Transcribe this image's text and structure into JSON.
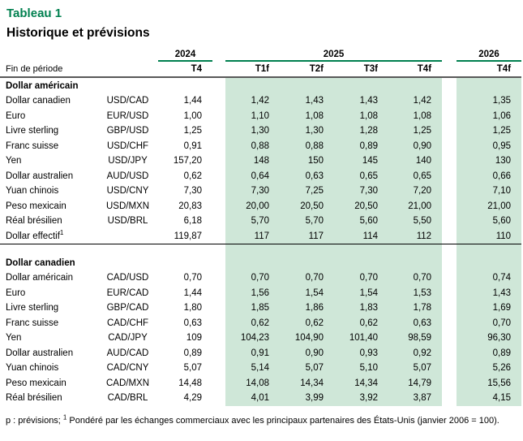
{
  "title": "Tableau 1",
  "subtitle": "Historique et prévisions",
  "colors": {
    "accent_green": "#00804F",
    "forecast_band_green": "#CFE7D8",
    "header_rule_gray": "#595959"
  },
  "header": {
    "period_label": "Fin de période",
    "year_groups": [
      {
        "label": "2024",
        "quarters": [
          "T4"
        ]
      },
      {
        "label": "2025",
        "quarters": [
          "T1f",
          "T2f",
          "T3f",
          "T4f"
        ]
      },
      {
        "label": "2026",
        "quarters": [
          "T4f"
        ]
      }
    ]
  },
  "sections": [
    {
      "title": "Dollar américain",
      "rows": [
        {
          "label": "Dollar canadien",
          "pair": "USD/CAD",
          "values": [
            "1,44",
            "1,42",
            "1,43",
            "1,43",
            "1,42",
            "1,35"
          ]
        },
        {
          "label": "Euro",
          "pair": "EUR/USD",
          "values": [
            "1,00",
            "1,10",
            "1,08",
            "1,08",
            "1,08",
            "1,06"
          ]
        },
        {
          "label": "Livre sterling",
          "pair": "GBP/USD",
          "values": [
            "1,25",
            "1,30",
            "1,30",
            "1,28",
            "1,25",
            "1,25"
          ]
        },
        {
          "label": "Franc suisse",
          "pair": "USD/CHF",
          "values": [
            "0,91",
            "0,88",
            "0,88",
            "0,89",
            "0,90",
            "0,95"
          ]
        },
        {
          "label": "Yen",
          "pair": "USD/JPY",
          "values": [
            "157,20",
            "148",
            "150",
            "145",
            "140",
            "130"
          ]
        },
        {
          "label": "Dollar australien",
          "pair": "AUD/USD",
          "values": [
            "0,62",
            "0,64",
            "0,63",
            "0,65",
            "0,65",
            "0,66"
          ]
        },
        {
          "label": "Yuan chinois",
          "pair": "USD/CNY",
          "values": [
            "7,30",
            "7,30",
            "7,25",
            "7,30",
            "7,20",
            "7,10"
          ]
        },
        {
          "label": "Peso mexicain",
          "pair": "USD/MXN",
          "values": [
            "20,83",
            "20,00",
            "20,50",
            "20,50",
            "21,00",
            "21,00"
          ]
        },
        {
          "label": "Réal brésilien",
          "pair": "USD/BRL",
          "values": [
            "6,18",
            "5,70",
            "5,70",
            "5,60",
            "5,50",
            "5,60"
          ]
        },
        {
          "label": "Dollar effectif",
          "sup": "1",
          "pair": "",
          "values": [
            "119,87",
            "117",
            "117",
            "114",
            "112",
            "110"
          ]
        }
      ]
    },
    {
      "title": "Dollar canadien",
      "rows": [
        {
          "label": "Dollar américain",
          "pair": "CAD/USD",
          "values": [
            "0,70",
            "0,70",
            "0,70",
            "0,70",
            "0,70",
            "0,74"
          ]
        },
        {
          "label": "Euro",
          "pair": "EUR/CAD",
          "values": [
            "1,44",
            "1,56",
            "1,54",
            "1,54",
            "1,53",
            "1,43"
          ]
        },
        {
          "label": "Livre sterling",
          "pair": "GBP/CAD",
          "values": [
            "1,80",
            "1,85",
            "1,86",
            "1,83",
            "1,78",
            "1,69"
          ]
        },
        {
          "label": "Franc suisse",
          "pair": "CAD/CHF",
          "values": [
            "0,63",
            "0,62",
            "0,62",
            "0,62",
            "0,63",
            "0,70"
          ]
        },
        {
          "label": "Yen",
          "pair": "CAD/JPY",
          "values": [
            "109",
            "104,23",
            "104,90",
            "101,40",
            "98,59",
            "96,30"
          ]
        },
        {
          "label": "Dollar australien",
          "pair": "AUD/CAD",
          "values": [
            "0,89",
            "0,91",
            "0,90",
            "0,93",
            "0,92",
            "0,89"
          ]
        },
        {
          "label": "Yuan chinois",
          "pair": "CAD/CNY",
          "values": [
            "5,07",
            "5,14",
            "5,07",
            "5,10",
            "5,07",
            "5,26"
          ]
        },
        {
          "label": "Peso mexicain",
          "pair": "CAD/MXN",
          "values": [
            "14,48",
            "14,08",
            "14,34",
            "14,34",
            "14,79",
            "15,56"
          ]
        },
        {
          "label": "Réal brésilien",
          "pair": "CAD/BRL",
          "values": [
            "4,29",
            "4,01",
            "3,99",
            "3,92",
            "3,87",
            "4,15"
          ]
        }
      ]
    }
  ],
  "footnote": {
    "prefix": "p : prévisions; ",
    "sup": "1",
    "text": " Pondéré par les échanges commerciaux avec les principaux partenaires des États-Unis (janvier 2006 = 100)."
  }
}
